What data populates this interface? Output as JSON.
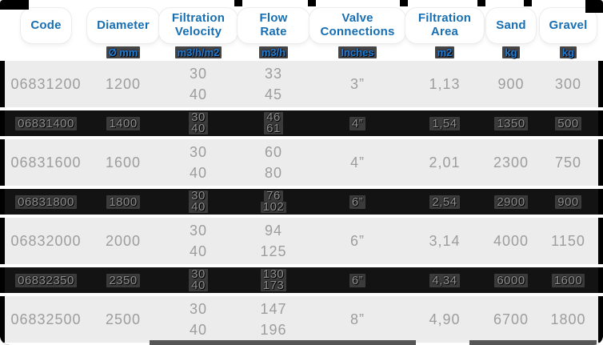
{
  "header": {
    "columns": [
      {
        "label": "Code",
        "unit": ""
      },
      {
        "label": "Diameter",
        "unit": "Ø mm"
      },
      {
        "label": "Filtration Velocity",
        "unit": "m3/h/m2"
      },
      {
        "label": "Flow Rate",
        "unit": "m3/h"
      },
      {
        "label": "Valve Connections",
        "unit": "Inches"
      },
      {
        "label": "Filtration Area",
        "unit": "m2"
      },
      {
        "label": "Sand",
        "unit": "kg"
      },
      {
        "label": "Gravel",
        "unit": "kg"
      }
    ]
  },
  "rows": [
    {
      "code": "06831200",
      "diameter": "1200",
      "velocities": [
        "30",
        "40"
      ],
      "flow_rates": [
        "33",
        "45"
      ],
      "valve": "3”",
      "area": "1,13",
      "sand": "900",
      "gravel": "300",
      "dimmed": false
    },
    {
      "code": "06831400",
      "diameter": "1400",
      "velocities": [
        "30",
        "40"
      ],
      "flow_rates": [
        "46",
        "61"
      ],
      "valve": "4”",
      "area": "1,54",
      "sand": "1350",
      "gravel": "500",
      "dimmed": true
    },
    {
      "code": "06831600",
      "diameter": "1600",
      "velocities": [
        "30",
        "40"
      ],
      "flow_rates": [
        "60",
        "80"
      ],
      "valve": "4”",
      "area": "2,01",
      "sand": "2300",
      "gravel": "750",
      "dimmed": false
    },
    {
      "code": "06831800",
      "diameter": "1800",
      "velocities": [
        "30",
        "40"
      ],
      "flow_rates": [
        "76",
        "102"
      ],
      "valve": "6”",
      "area": "2,54",
      "sand": "2900",
      "gravel": "900",
      "dimmed": true
    },
    {
      "code": "06832000",
      "diameter": "2000",
      "velocities": [
        "30",
        "40"
      ],
      "flow_rates": [
        "94",
        "125"
      ],
      "valve": "6”",
      "area": "3,14",
      "sand": "4000",
      "gravel": "1150",
      "dimmed": false
    },
    {
      "code": "06832350",
      "diameter": "2350",
      "velocities": [
        "30",
        "40"
      ],
      "flow_rates": [
        "130",
        "173"
      ],
      "valve": "6”",
      "area": "4,34",
      "sand": "6000",
      "gravel": "1600",
      "dimmed": true
    },
    {
      "code": "06832500",
      "diameter": "2500",
      "velocities": [
        "30",
        "40"
      ],
      "flow_rates": [
        "147",
        "196"
      ],
      "valve": "8”",
      "area": "4,90",
      "sand": "6700",
      "gravel": "1800",
      "dimmed": false
    }
  ],
  "colors": {
    "accent_blue": "#176fb3",
    "unit_blue": "#1d7dd2",
    "row_gray": "#ececec",
    "text_gray": "#9d9d9d",
    "glitch_bg": "#131313"
  }
}
